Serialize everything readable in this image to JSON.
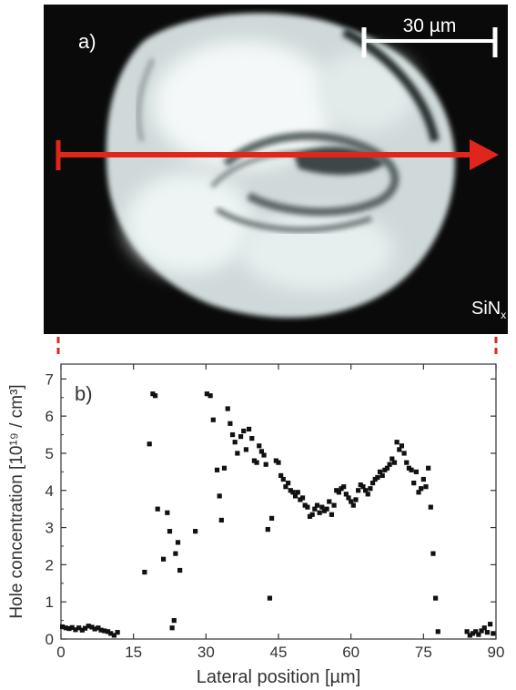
{
  "micrograph": {
    "panel_label": "a)",
    "scalebar_label": "30 µm",
    "material_label": "SiN",
    "material_subscript": "x",
    "colors": {
      "background": "#0a0a0a",
      "arrow": "#e0261b",
      "bright": "#e8eeee"
    }
  },
  "chart_data": {
    "type": "scatter",
    "panel_label": "b)",
    "xlabel": "Lateral position [µm]",
    "ylabel": "Hole concentration [10¹⁹ / cm³]",
    "xlim": [
      0,
      90
    ],
    "ylim": [
      0,
      7.4
    ],
    "xticks": [
      0,
      15,
      30,
      45,
      60,
      75,
      90
    ],
    "yticks": [
      0,
      1,
      2,
      3,
      4,
      5,
      6,
      7
    ],
    "grid": false,
    "legend": "none",
    "marker_color": "#111111",
    "points": [
      [
        0.3,
        0.33
      ],
      [
        1,
        0.3
      ],
      [
        1.7,
        0.28
      ],
      [
        2.3,
        0.31
      ],
      [
        3,
        0.25
      ],
      [
        3.7,
        0.3
      ],
      [
        4.4,
        0.24
      ],
      [
        5,
        0.29
      ],
      [
        5.7,
        0.35
      ],
      [
        6.4,
        0.32
      ],
      [
        7,
        0.27
      ],
      [
        7.7,
        0.3
      ],
      [
        8.3,
        0.24
      ],
      [
        9,
        0.22
      ],
      [
        9.7,
        0.2
      ],
      [
        10.3,
        0.15
      ],
      [
        11,
        0.1
      ],
      [
        11.7,
        0.18
      ],
      [
        17.3,
        1.8
      ],
      [
        18.3,
        5.25
      ],
      [
        19,
        6.6
      ],
      [
        19.5,
        6.55
      ],
      [
        20,
        3.5
      ],
      [
        21.2,
        2.15
      ],
      [
        22,
        3.4
      ],
      [
        22.5,
        2.9
      ],
      [
        23,
        0.3
      ],
      [
        23.4,
        0.5
      ],
      [
        23.7,
        2.3
      ],
      [
        24.2,
        2.6
      ],
      [
        24.6,
        1.85
      ],
      [
        27.8,
        2.9
      ],
      [
        30.2,
        6.6
      ],
      [
        30.9,
        6.55
      ],
      [
        31.5,
        5.9
      ],
      [
        32.3,
        4.55
      ],
      [
        32.8,
        3.85
      ],
      [
        33.2,
        3.2
      ],
      [
        33.8,
        4.6
      ],
      [
        34.5,
        6.2
      ],
      [
        35,
        5.8
      ],
      [
        35.5,
        5.5
      ],
      [
        36,
        5.3
      ],
      [
        36.5,
        5.0
      ],
      [
        37.2,
        5.45
      ],
      [
        37.8,
        5.6
      ],
      [
        38.3,
        5.1
      ],
      [
        38.9,
        5.65
      ],
      [
        39.5,
        5.4
      ],
      [
        40,
        4.8
      ],
      [
        40.5,
        4.75
      ],
      [
        41,
        5.2
      ],
      [
        41.5,
        5.05
      ],
      [
        42,
        4.95
      ],
      [
        42.4,
        4.7
      ],
      [
        42.8,
        2.95
      ],
      [
        43.2,
        1.1
      ],
      [
        43.6,
        3.25
      ],
      [
        44.5,
        4.8
      ],
      [
        45,
        4.75
      ],
      [
        45.5,
        4.4
      ],
      [
        46,
        4.3
      ],
      [
        46.5,
        4.1
      ],
      [
        47,
        4.2
      ],
      [
        47.5,
        4.0
      ],
      [
        48,
        3.95
      ],
      [
        48.5,
        3.85
      ],
      [
        49,
        3.95
      ],
      [
        49.5,
        3.75
      ],
      [
        50,
        3.8
      ],
      [
        50.5,
        3.6
      ],
      [
        51,
        3.55
      ],
      [
        51.5,
        3.3
      ],
      [
        52,
        3.35
      ],
      [
        52.5,
        3.5
      ],
      [
        53,
        3.6
      ],
      [
        53.5,
        3.4
      ],
      [
        54,
        3.55
      ],
      [
        54.5,
        3.45
      ],
      [
        55,
        3.5
      ],
      [
        55.5,
        3.7
      ],
      [
        56,
        3.35
      ],
      [
        56.5,
        3.6
      ],
      [
        57,
        4.0
      ],
      [
        57.5,
        3.95
      ],
      [
        58,
        4.05
      ],
      [
        58.5,
        4.1
      ],
      [
        59,
        3.9
      ],
      [
        59.5,
        3.8
      ],
      [
        60,
        3.7
      ],
      [
        60.5,
        3.6
      ],
      [
        61,
        3.75
      ],
      [
        61.5,
        4.0
      ],
      [
        62,
        4.15
      ],
      [
        62.5,
        4.1
      ],
      [
        63,
        4.0
      ],
      [
        63.5,
        3.9
      ],
      [
        64,
        4.05
      ],
      [
        64.5,
        4.2
      ],
      [
        65,
        4.3
      ],
      [
        65.5,
        4.35
      ],
      [
        66,
        4.5
      ],
      [
        66.5,
        4.4
      ],
      [
        67,
        4.55
      ],
      [
        67.5,
        4.6
      ],
      [
        68,
        4.7
      ],
      [
        68.5,
        4.85
      ],
      [
        69,
        4.75
      ],
      [
        69.5,
        5.3
      ],
      [
        70,
        5.1
      ],
      [
        70.5,
        5.2
      ],
      [
        71,
        5.0
      ],
      [
        71.5,
        4.75
      ],
      [
        72,
        4.6
      ],
      [
        72.5,
        4.55
      ],
      [
        73,
        4.2
      ],
      [
        73.5,
        4.5
      ],
      [
        74,
        3.95
      ],
      [
        74.5,
        4.05
      ],
      [
        75,
        4.3
      ],
      [
        75.5,
        4.1
      ],
      [
        76,
        4.6
      ],
      [
        76.5,
        3.55
      ],
      [
        77,
        2.3
      ],
      [
        77.5,
        1.1
      ],
      [
        78,
        0.2
      ],
      [
        84,
        0.2
      ],
      [
        84.6,
        0.1
      ],
      [
        85.2,
        0.15
      ],
      [
        85.8,
        0.2
      ],
      [
        86.4,
        0.12
      ],
      [
        87,
        0.22
      ],
      [
        87.6,
        0.3
      ],
      [
        88.2,
        0.18
      ],
      [
        88.8,
        0.4
      ],
      [
        89.4,
        0.15
      ]
    ]
  }
}
